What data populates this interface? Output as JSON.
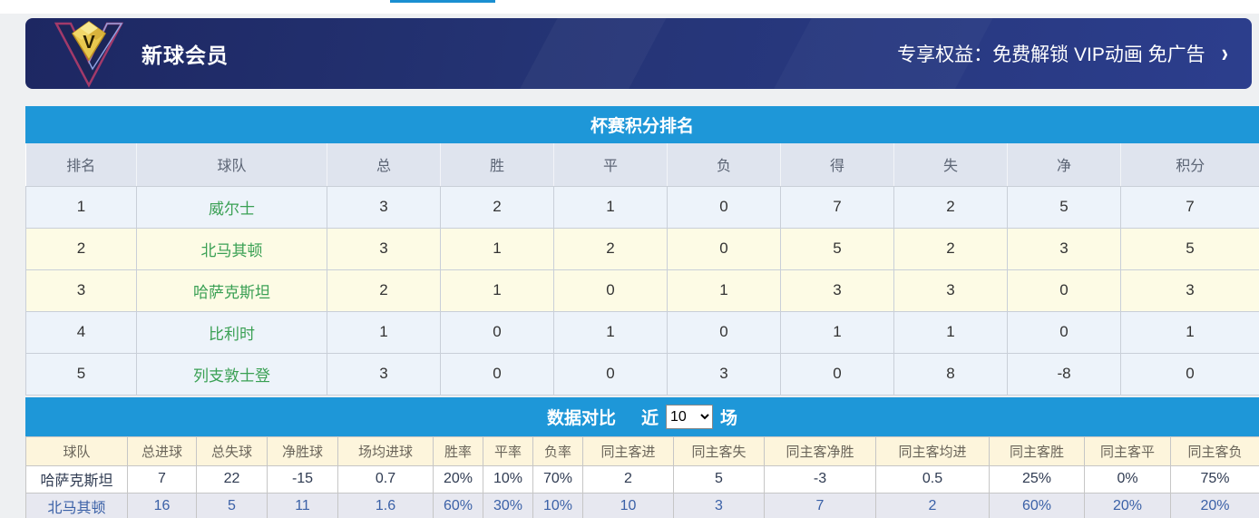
{
  "vip_banner": {
    "title": "新球会员",
    "benefits": "专享权益：免费解锁 VIP动画 免广告",
    "chevron": "›",
    "icon": "vip-diamond-icon"
  },
  "standings": {
    "title": "杯赛积分排名",
    "columns": [
      "排名",
      "球队",
      "总",
      "胜",
      "平",
      "负",
      "得",
      "失",
      "净",
      "积分"
    ],
    "rows": [
      {
        "cells": [
          "1",
          "威尔士",
          "3",
          "2",
          "1",
          "0",
          "7",
          "2",
          "5",
          "7"
        ],
        "highlight": false
      },
      {
        "cells": [
          "2",
          "北马其顿",
          "3",
          "1",
          "2",
          "0",
          "5",
          "2",
          "3",
          "5"
        ],
        "highlight": true
      },
      {
        "cells": [
          "3",
          "哈萨克斯坦",
          "2",
          "1",
          "0",
          "1",
          "3",
          "3",
          "0",
          "3"
        ],
        "highlight": true
      },
      {
        "cells": [
          "4",
          "比利时",
          "1",
          "0",
          "1",
          "0",
          "1",
          "1",
          "0",
          "1"
        ],
        "highlight": false
      },
      {
        "cells": [
          "5",
          "列支敦士登",
          "3",
          "0",
          "0",
          "3",
          "0",
          "8",
          "-8",
          "0"
        ],
        "highlight": false
      }
    ]
  },
  "comparison": {
    "title": "数据对比",
    "near_label": "近",
    "matches_label": "场",
    "selected_count": "10",
    "columns": [
      "球队",
      "总进球",
      "总失球",
      "净胜球",
      "场均进球",
      "胜率",
      "平率",
      "负率",
      "同主客进",
      "同主客失",
      "同主客净胜",
      "同主客均进",
      "同主客胜",
      "同主客平",
      "同主客负"
    ],
    "rows": [
      {
        "cells": [
          "哈萨克斯坦",
          "7",
          "22",
          "-15",
          "0.7",
          "20%",
          "10%",
          "70%",
          "2",
          "5",
          "-3",
          "0.5",
          "25%",
          "0%",
          "75%"
        ],
        "highlight": false
      },
      {
        "cells": [
          "北马其顿",
          "16",
          "5",
          "11",
          "1.6",
          "60%",
          "30%",
          "10%",
          "10",
          "3",
          "7",
          "2",
          "60%",
          "20%",
          "20%"
        ],
        "highlight": false
      }
    ]
  },
  "colors": {
    "section_header_blue": "#1e97d8",
    "banner_gradient_start": "#1d2762",
    "banner_gradient_end": "#2c3e8d",
    "highlight_row_yellow": "#fdfbe5",
    "normal_row_blue": "#edf3fa",
    "team_green": "#3aa054",
    "comparison_link_blue": "#3b61a7",
    "top_accent_blue": "#1a8fd1"
  }
}
